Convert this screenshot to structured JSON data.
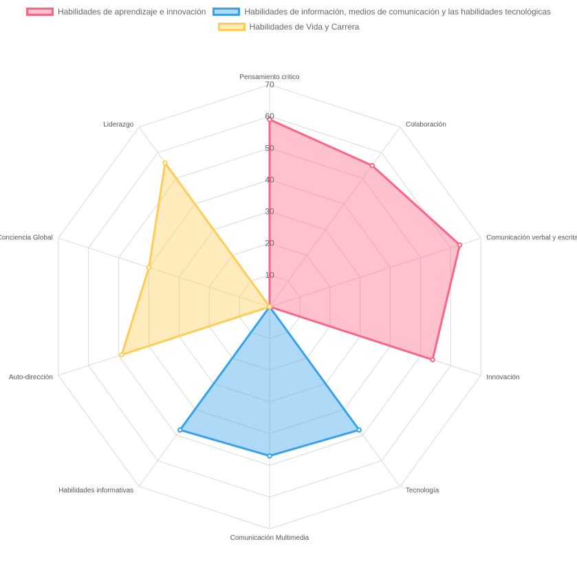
{
  "chart_data": {
    "type": "radar",
    "axes": [
      "Pensamiento critico",
      "Colaboración",
      "Comunicación verbal y escrita",
      "Innovación",
      "Tecnología",
      "Comunicación Multimedia",
      "Habilidades informativas",
      "Auto-dirección",
      "Conciencia Global",
      "Liderazgo"
    ],
    "r_range": [
      0,
      70
    ],
    "ticks": [
      10,
      20,
      30,
      40,
      50,
      60,
      70
    ],
    "series": [
      {
        "name": "Habilidades de aprendizaje e innovación",
        "values": [
          59,
          55,
          63,
          54,
          0,
          0,
          0,
          0,
          0,
          0
        ],
        "stroke": "#ff6384",
        "fill": "rgba(255, 99, 132, 0.4)"
      },
      {
        "name": "Habilidades de información, medios de comunicación y las habilidades tecnológicas",
        "values": [
          0,
          0,
          0,
          0,
          48,
          47,
          48,
          0,
          0,
          0
        ],
        "stroke": "#36a2eb",
        "fill": "rgba(54, 162, 235, 0.4)"
      },
      {
        "name": "Habilidades de Vida y Carrera",
        "values": [
          0,
          0,
          0,
          0,
          0,
          0,
          0,
          49,
          40,
          56
        ],
        "stroke": "#ffcd56",
        "fill": "rgba(255, 205, 86, 0.4)"
      }
    ],
    "grid": true,
    "legend_position": "top"
  }
}
